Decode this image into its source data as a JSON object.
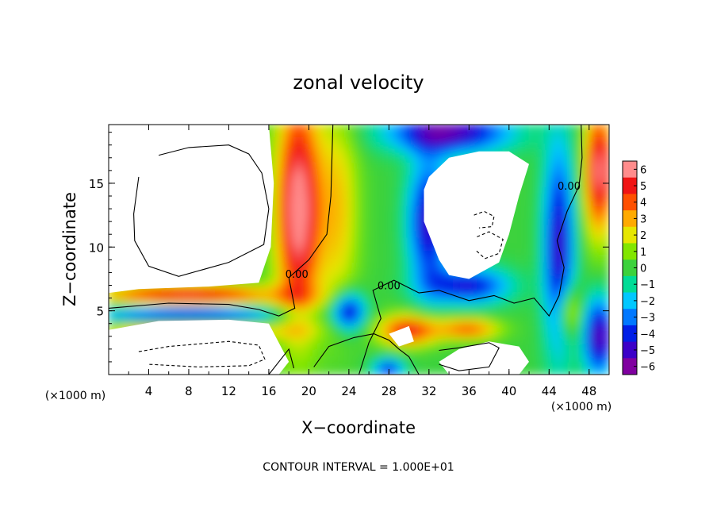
{
  "chart_data": {
    "type": "heatmap",
    "title": "zonal velocity",
    "xlabel": "X−coordinate",
    "ylabel": "Z−coordinate",
    "x_unit": "(×1000 m)",
    "y_unit": "(×1000 m)",
    "xlim": [
      0,
      50
    ],
    "ylim": [
      0,
      19.6
    ],
    "x_ticks": [
      4,
      8,
      12,
      16,
      20,
      24,
      28,
      32,
      36,
      40,
      44,
      48
    ],
    "y_ticks": [
      5,
      10,
      15
    ],
    "colorbar": {
      "min": -6,
      "max": 6,
      "ticks": [
        6,
        5,
        4,
        3,
        2,
        1,
        0,
        -1,
        -2,
        -3,
        -4,
        -5,
        -6
      ],
      "tick_labels": [
        "6",
        "5",
        "4",
        "3",
        "2",
        "1",
        "0",
        "−1",
        "−2",
        "−3",
        "−4",
        "−5",
        "−6"
      ]
    },
    "contour_labels": [
      {
        "text": "0.00",
        "x": 18.8,
        "z": 7.6
      },
      {
        "text": "0.00",
        "x": 28.0,
        "z": 6.7
      },
      {
        "text": "0.00",
        "x": 46.0,
        "z": 14.5
      }
    ],
    "note": "CONTOUR INTERVAL = 1.000E+01",
    "grid": false
  }
}
